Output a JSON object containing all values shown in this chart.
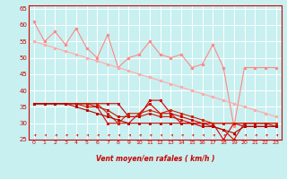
{
  "xlabel": "Vent moyen/en rafales ( km/h )",
  "xlim": [
    -0.5,
    23.5
  ],
  "ylim": [
    25,
    66
  ],
  "yticks": [
    25,
    30,
    35,
    40,
    45,
    50,
    55,
    60,
    65
  ],
  "xticks": [
    0,
    1,
    2,
    3,
    4,
    5,
    6,
    7,
    8,
    9,
    10,
    11,
    12,
    13,
    14,
    15,
    16,
    17,
    18,
    19,
    20,
    21,
    22,
    23
  ],
  "bg_color": "#c8f0f0",
  "grid_color": "#ffffff",
  "lines_light": [
    {
      "color": "#ff8888",
      "data": [
        61,
        55,
        58,
        54,
        59,
        53,
        50,
        57,
        47,
        50,
        51,
        55,
        51,
        50,
        51,
        47,
        48,
        54,
        47,
        29,
        47,
        47,
        47,
        47
      ]
    },
    {
      "color": "#ffaaaa",
      "data": [
        55,
        54,
        53,
        52,
        51,
        50,
        49,
        48,
        47,
        46,
        45,
        44,
        43,
        42,
        41,
        40,
        39,
        38,
        37,
        36,
        35,
        34,
        33,
        32
      ]
    }
  ],
  "lines_dark": [
    {
      "color": "#cc0000",
      "data": [
        36,
        36,
        36,
        36,
        36,
        36,
        36,
        36,
        36,
        32,
        32,
        37,
        37,
        33,
        32,
        31,
        30,
        30,
        30,
        30,
        29,
        29,
        29,
        29
      ]
    },
    {
      "color": "#dd0000",
      "data": [
        36,
        36,
        36,
        36,
        36,
        36,
        35,
        30,
        30,
        30,
        33,
        36,
        33,
        33,
        30,
        30,
        30,
        30,
        25,
        30,
        30,
        30,
        30,
        30
      ]
    },
    {
      "color": "#cc2200",
      "data": [
        36,
        36,
        36,
        36,
        36,
        36,
        36,
        33,
        30,
        33,
        33,
        34,
        33,
        34,
        33,
        32,
        31,
        30,
        30,
        30,
        30,
        30,
        30,
        30
      ]
    },
    {
      "color": "#cc1100",
      "data": [
        36,
        36,
        36,
        36,
        36,
        35,
        35,
        34,
        32,
        32,
        32,
        33,
        32,
        32,
        31,
        30,
        30,
        29,
        28,
        25,
        30,
        30,
        30,
        29
      ]
    },
    {
      "color": "#bb0000",
      "data": [
        36,
        36,
        36,
        36,
        35,
        34,
        33,
        32,
        31,
        30,
        30,
        30,
        30,
        30,
        30,
        30,
        29,
        29,
        28,
        27,
        29,
        29,
        29,
        29
      ]
    }
  ],
  "arrow_color": "#cc0000",
  "figsize": [
    3.2,
    2.0
  ],
  "dpi": 100
}
